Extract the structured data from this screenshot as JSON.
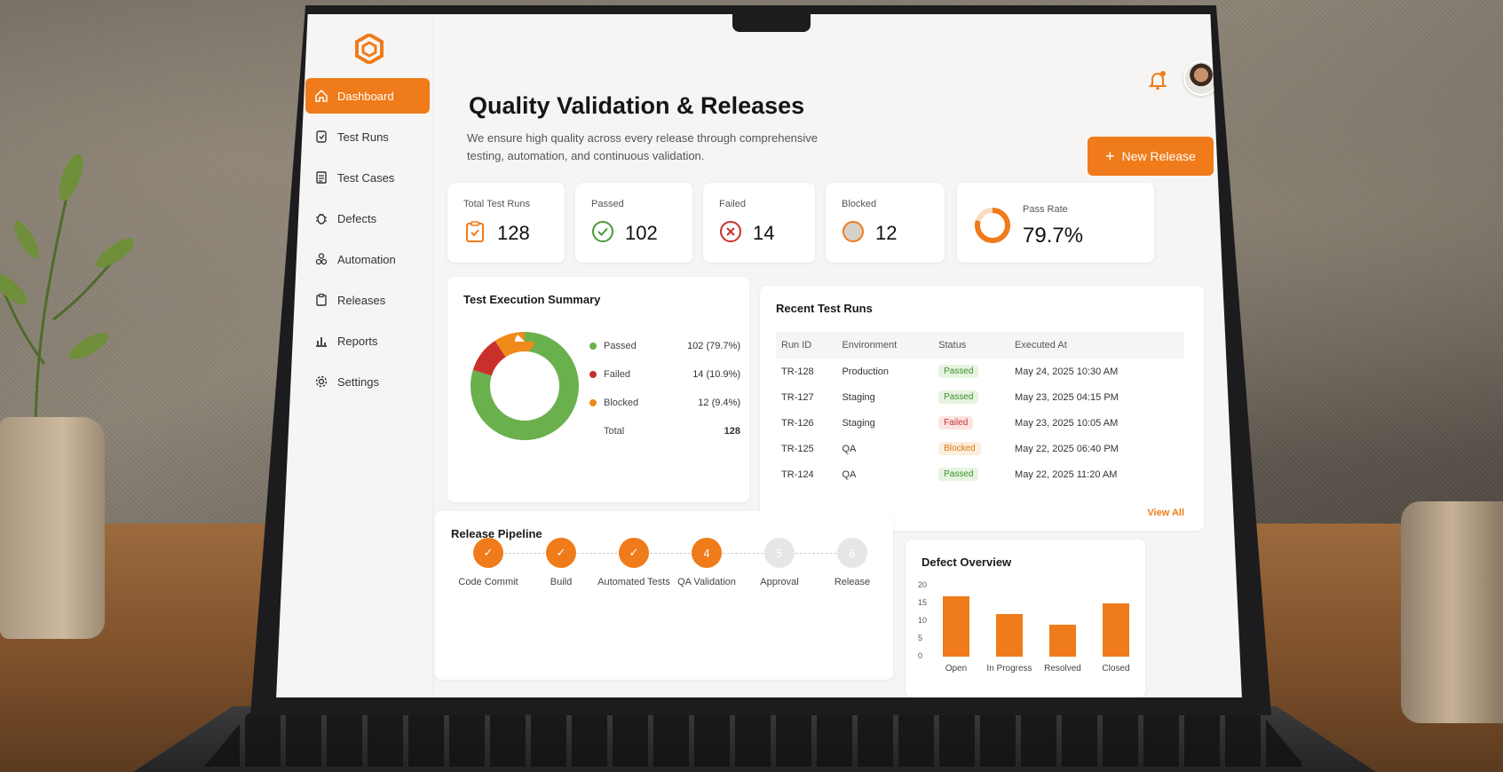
{
  "sidebar": {
    "items": [
      {
        "label": "Dashboard",
        "icon": "home-icon",
        "active": true
      },
      {
        "label": "Test Runs",
        "icon": "test-runs-icon",
        "active": false
      },
      {
        "label": "Test Cases",
        "icon": "document-icon",
        "active": false
      },
      {
        "label": "Defects",
        "icon": "bug-icon",
        "active": false
      },
      {
        "label": "Automation",
        "icon": "automation-icon",
        "active": false
      },
      {
        "label": "Releases",
        "icon": "clipboard-icon",
        "active": false
      },
      {
        "label": "Reports",
        "icon": "bar-chart-icon",
        "active": false
      },
      {
        "label": "Settings",
        "icon": "gear-icon",
        "active": false
      }
    ]
  },
  "header": {
    "title": "Quality Validation & Releases",
    "subtitle": "We ensure high quality across every release through comprehensive testing, automation, and continuous validation.",
    "new_release_label": "New Release"
  },
  "stats": [
    {
      "label": "Total Test Runs",
      "value": "128",
      "icon": "clipboard-check-icon"
    },
    {
      "label": "Passed",
      "value": "102",
      "icon": "check-circle-icon"
    },
    {
      "label": "Failed",
      "value": "14",
      "icon": "x-circle-icon"
    },
    {
      "label": "Blocked",
      "value": "12",
      "icon": "blocked-icon"
    },
    {
      "label": "Pass Rate",
      "value": "79.7%",
      "icon": "ring-progress-icon",
      "fraction": 0.797
    }
  ],
  "execution_summary": {
    "title": "Test Execution Summary",
    "legend": [
      {
        "label": "Passed",
        "value": "102 (79.7%)",
        "color": "#6ab04c"
      },
      {
        "label": "Failed",
        "value": "14 (10.9%)",
        "color": "#c9302c"
      },
      {
        "label": "Blocked",
        "value": "12 (9.4%)",
        "color": "#ef8a1a"
      },
      {
        "label": "Total",
        "value": "128",
        "color": ""
      }
    ]
  },
  "recent_runs": {
    "title": "Recent Test Runs",
    "columns": [
      "Run ID",
      "Environment",
      "Status",
      "Executed At"
    ],
    "rows": [
      {
        "id": "TR-128",
        "env": "Production",
        "status": "Passed",
        "at": "May 24, 2025 10:30 AM"
      },
      {
        "id": "TR-127",
        "env": "Staging",
        "status": "Passed",
        "at": "May 23, 2025 04:15 PM"
      },
      {
        "id": "TR-126",
        "env": "Staging",
        "status": "Failed",
        "at": "May 23, 2025 10:05 AM"
      },
      {
        "id": "TR-125",
        "env": "QA",
        "status": "Blocked",
        "at": "May 22, 2025 06:40 PM"
      },
      {
        "id": "TR-124",
        "env": "QA",
        "status": "Passed",
        "at": "May 22, 2025 11:20 AM"
      }
    ],
    "view_all": "View All"
  },
  "pipeline": {
    "title": "Release Pipeline",
    "steps": [
      {
        "label": "Code Commit",
        "marker": "✓",
        "state": "done"
      },
      {
        "label": "Build",
        "marker": "✓",
        "state": "done"
      },
      {
        "label": "Automated Tests",
        "marker": "✓",
        "state": "done"
      },
      {
        "label": "QA Validation",
        "marker": "4",
        "state": "current"
      },
      {
        "label": "Approval",
        "marker": "5",
        "state": "pending"
      },
      {
        "label": "Release",
        "marker": "6",
        "state": "pending"
      }
    ]
  },
  "defects": {
    "title": "Defect Overview"
  },
  "chart_data": [
    {
      "type": "pie",
      "title": "Test Execution Summary",
      "categories": [
        "Passed",
        "Failed",
        "Blocked"
      ],
      "values": [
        102,
        14,
        12
      ],
      "colors": [
        "#6ab04c",
        "#c9302c",
        "#ef8a1a"
      ]
    },
    {
      "type": "bar",
      "title": "Defect Overview",
      "categories": [
        "Open",
        "In Progress",
        "Resolved",
        "Closed"
      ],
      "values": [
        17,
        12,
        9,
        15
      ],
      "y_ticks": [
        "20",
        "15",
        "10",
        "5",
        "0"
      ],
      "ylim": [
        0,
        20
      ],
      "color": "#ef7b1a"
    }
  ],
  "colors": {
    "accent": "#ef7b1a",
    "passed_bg": "#e6f4e0",
    "passed_fg": "#3f8f2f",
    "failed_bg": "#fbe4e2",
    "failed_fg": "#c9302c",
    "blocked_bg": "#fdeedd",
    "blocked_fg": "#d9770f"
  }
}
